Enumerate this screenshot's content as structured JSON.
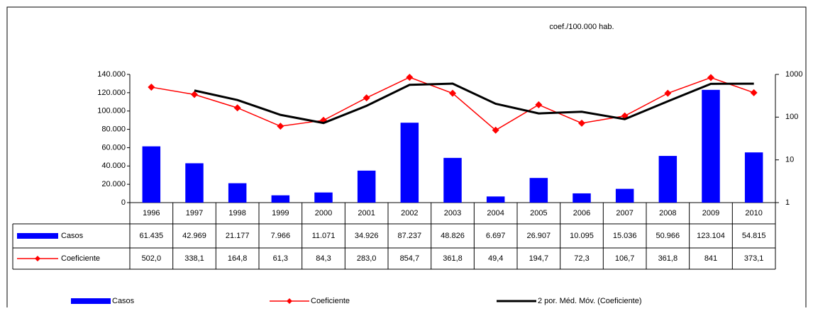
{
  "chart_data": {
    "type": "bar-line-table",
    "annotation": "coef./100.000 hab.",
    "categories": [
      "1996",
      "1997",
      "1998",
      "1999",
      "2000",
      "2001",
      "2002",
      "2003",
      "2004",
      "2005",
      "2006",
      "2007",
      "2008",
      "2009",
      "2010"
    ],
    "ylim": [
      0,
      140000
    ],
    "yticks": [
      0,
      {
        "value": 20000,
        "label": "20.000"
      },
      {
        "value": 40000,
        "label": "40.000"
      },
      {
        "value": 60000,
        "label": "60.000"
      },
      {
        "value": 80000,
        "label": "80.000"
      },
      {
        "value": 100000,
        "label": "100.000"
      },
      {
        "value": 120000,
        "label": "120.000"
      },
      {
        "value": 140000,
        "label": "140.000"
      }
    ],
    "y2lim": [
      1,
      1000
    ],
    "y2ticks": [
      1,
      10,
      100,
      1000
    ],
    "y2log": true,
    "series": [
      {
        "name": "Casos",
        "color": "#0000ff",
        "axis": "y",
        "kind": "bar",
        "values": [
          61435,
          42969,
          21177,
          7966,
          11071,
          34926,
          87237,
          48826,
          6697,
          26907,
          10095,
          15036,
          50966,
          123104,
          54815
        ],
        "value_labels": [
          "61.435",
          "42.969",
          "21.177",
          "7.966",
          "11.071",
          "34.926",
          "87.237",
          "48.826",
          "6.697",
          "26.907",
          "10.095",
          "15.036",
          "50.966",
          "123.104",
          "54.815"
        ]
      },
      {
        "name": "Coeficiente",
        "color": "#ff0000",
        "axis": "y2",
        "kind": "line-marker",
        "values": [
          502.0,
          338.1,
          164.8,
          61.3,
          84.3,
          283.0,
          854.7,
          361.8,
          49.4,
          194.7,
          72.3,
          106.7,
          361.8,
          841,
          373.1
        ],
        "value_labels": [
          "502,0",
          "338,1",
          "164,8",
          "61,3",
          "84,3",
          "283,0",
          "854,7",
          "361,8",
          "49,4",
          "194,7",
          "72,3",
          "106,7",
          "361,8",
          "841",
          "373,1"
        ]
      },
      {
        "name": "2 por. Méd. Móv. (Coeficiente)",
        "color": "#000000",
        "axis": "y2",
        "kind": "line",
        "values": [
          null,
          420.05,
          251.45,
          113.05,
          72.8,
          183.65,
          568.85,
          608.25,
          205.6,
          122.05,
          133.5,
          89.5,
          234.25,
          601.4,
          607.05
        ]
      }
    ]
  }
}
